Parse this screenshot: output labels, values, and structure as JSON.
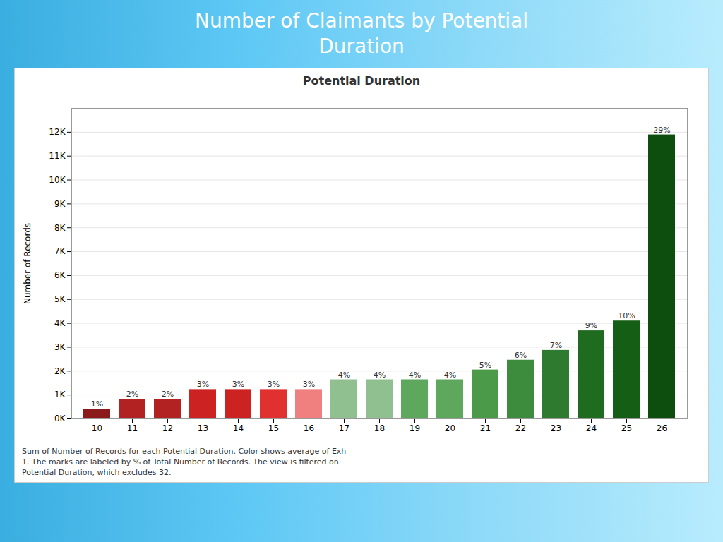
{
  "chart_data": {
    "type": "bar",
    "title": "Number of Claimants by Potential\nDuration",
    "subtitle": "Potential Duration",
    "caption": "Sum of Number of Records for each Potential Duration.  Color shows average of Exh\n1.  The marks are labeled by % of Total Number of Records. The view is filtered on\nPotential Duration, which excludes 32.",
    "y_label": "Number of Records",
    "categories": [
      10,
      11,
      12,
      13,
      14,
      15,
      16,
      17,
      18,
      19,
      20,
      21,
      22,
      23,
      24,
      25,
      26
    ],
    "values": [
      410,
      820,
      820,
      1230,
      1230,
      1230,
      1230,
      1640,
      1640,
      1640,
      1640,
      2050,
      2460,
      2870,
      3690,
      4100,
      11890
    ],
    "percent_labels": [
      "1%",
      "2%",
      "2%",
      "3%",
      "3%",
      "3%",
      "3%",
      "4%",
      "4%",
      "4%",
      "4%",
      "5%",
      "6%",
      "7%",
      "9%",
      "10%",
      "29%"
    ],
    "colors": [
      "#8B1A1A",
      "#B22222",
      "#B22222",
      "#CC2222",
      "#CC2222",
      "#E03030",
      "#F08080",
      "#90C090",
      "#90C090",
      "#5DA85D",
      "#5DA85D",
      "#4A9A4A",
      "#3D8B3D",
      "#2E7A2E",
      "#1F6B1F",
      "#155E15",
      "#0D4D0D"
    ],
    "ylim": [
      0,
      13000
    ],
    "yticks": [
      {
        "value": 0,
        "label": "0K"
      },
      {
        "value": 1000,
        "label": "1K"
      },
      {
        "value": 2000,
        "label": "2K"
      },
      {
        "value": 3000,
        "label": "3K"
      },
      {
        "value": 4000,
        "label": "4K"
      },
      {
        "value": 5000,
        "label": "5K"
      },
      {
        "value": 6000,
        "label": "6K"
      },
      {
        "value": 7000,
        "label": "7K"
      },
      {
        "value": 8000,
        "label": "8K"
      },
      {
        "value": 9000,
        "label": "9K"
      },
      {
        "value": 10000,
        "label": "10K"
      },
      {
        "value": 11000,
        "label": "11K"
      },
      {
        "value": 12000,
        "label": "12K"
      }
    ],
    "grid": true
  }
}
